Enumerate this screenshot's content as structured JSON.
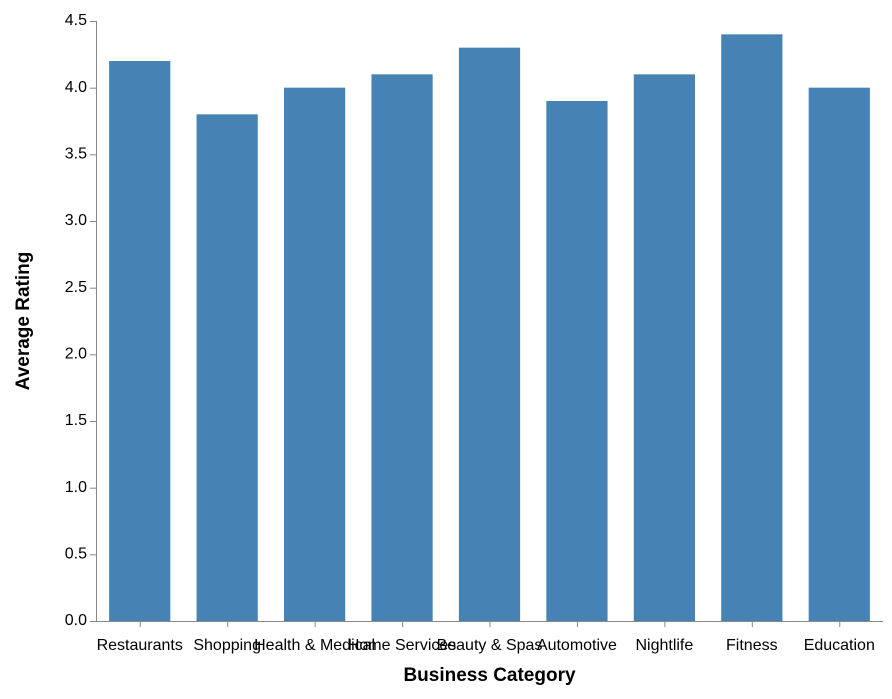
{
  "chart_data": {
    "type": "bar",
    "categories": [
      "Restaurants",
      "Shopping",
      "Health & Medical",
      "Home Services",
      "Beauty & Spas",
      "Automotive",
      "Nightlife",
      "Fitness",
      "Education"
    ],
    "values": [
      4.2,
      3.8,
      4.0,
      4.1,
      4.3,
      3.9,
      4.1,
      4.4,
      4.0
    ],
    "xlabel": "Business Category",
    "ylabel": "Average Rating",
    "ylim": [
      0,
      4.5
    ],
    "yticks": [
      "0.0",
      "0.5",
      "1.0",
      "1.5",
      "2.0",
      "2.5",
      "3.0",
      "3.5",
      "4.0",
      "4.5"
    ],
    "bar_color": "#4682b4",
    "axis_color": "#888888",
    "grid": false,
    "legend": "none"
  }
}
